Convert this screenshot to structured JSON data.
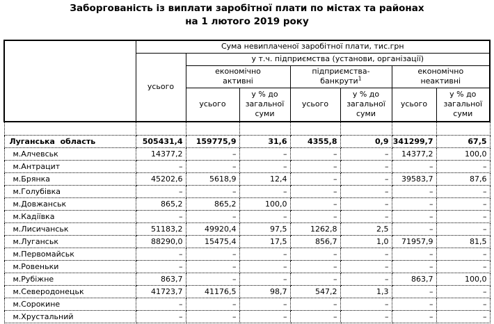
{
  "title": {
    "line1": "Заборгованість із виплати заробітної плати по містах та районах",
    "line2": "на 1 лютого 2019 року"
  },
  "table": {
    "header": {
      "corner": "",
      "sum_title": "Сума невиплаченої заробітної плати, тис.грн",
      "total_label": "усього",
      "including_label": "у т.ч. підприємства (установи, організації)",
      "groups": [
        {
          "line1": "економічно",
          "line2": "активні"
        },
        {
          "line1": "підприємства-",
          "line2": "банкрути",
          "sup": "1"
        },
        {
          "line1": "економічно",
          "line2": "неактивні"
        }
      ],
      "sub_total_label": "усього",
      "sub_pct_label": "у % до загальної суми"
    },
    "rows": [
      {
        "name": "Луганська  область",
        "bold": true,
        "values": [
          "505431,4",
          "159775,9",
          "31,6",
          "4355,8",
          "0,9",
          "341299,7",
          "67,5"
        ]
      },
      {
        "name": "м.Алчевськ",
        "values": [
          "14377,2",
          "–",
          "–",
          "–",
          "–",
          "14377,2",
          "100,0"
        ]
      },
      {
        "name": "м.Антрацит",
        "values": [
          "–",
          "–",
          "–",
          "–",
          "–",
          "–",
          "–"
        ]
      },
      {
        "name": "м.Брянка",
        "values": [
          "45202,6",
          "5618,9",
          "12,4",
          "–",
          "–",
          "39583,7",
          "87,6"
        ]
      },
      {
        "name": "м.Голубівка",
        "values": [
          "–",
          "–",
          "–",
          "–",
          "–",
          "–",
          "–"
        ]
      },
      {
        "name": "м.Довжанськ",
        "values": [
          "865,2",
          "865,2",
          "100,0",
          "–",
          "–",
          "–",
          "–"
        ]
      },
      {
        "name": "м.Кадіївка",
        "values": [
          "–",
          "–",
          "–",
          "–",
          "–",
          "–",
          "–"
        ]
      },
      {
        "name": "м.Лисичанськ",
        "values": [
          "51183,2",
          "49920,4",
          "97,5",
          "1262,8",
          "2,5",
          "–",
          "–"
        ]
      },
      {
        "name": "м.Луганськ",
        "values": [
          "88290,0",
          "15475,4",
          "17,5",
          "856,7",
          "1,0",
          "71957,9",
          "81,5"
        ]
      },
      {
        "name": "м.Первомайськ",
        "values": [
          "–",
          "–",
          "–",
          "–",
          "–",
          "–",
          "–"
        ]
      },
      {
        "name": "м.Ровеньки",
        "values": [
          "–",
          "–",
          "–",
          "–",
          "–",
          "–",
          "–"
        ]
      },
      {
        "name": "м.Рубіжне",
        "values": [
          "863,7",
          "–",
          "–",
          "–",
          "–",
          "863,7",
          "100,0"
        ]
      },
      {
        "name": "м.Северодонецьк",
        "values": [
          "41723,7",
          "41176,5",
          "98,7",
          "547,2",
          "1,3",
          "–",
          "–"
        ]
      },
      {
        "name": "м.Сорокине",
        "values": [
          "–",
          "–",
          "–",
          "–",
          "–",
          "–",
          "–"
        ]
      },
      {
        "name": "м.Хрустальний",
        "values": [
          "–",
          "–",
          "–",
          "–",
          "–",
          "–",
          "–"
        ]
      }
    ]
  }
}
